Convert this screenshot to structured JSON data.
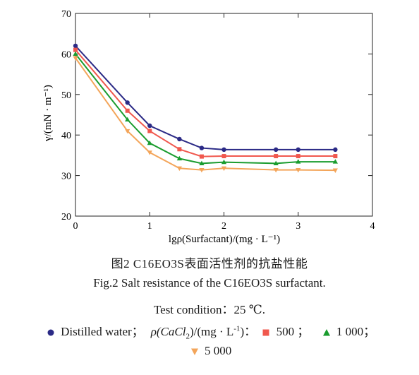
{
  "chart_data": {
    "type": "line",
    "ylabel": "γ/(mN · m⁻¹)",
    "xlabel": "lgρ(Surfactant)/(mg · L⁻¹)",
    "xlim": [
      0,
      4
    ],
    "ylim": [
      20,
      70
    ],
    "xticks": [
      "0",
      "1",
      "2",
      "3",
      "4"
    ],
    "yticks": [
      "20",
      "30",
      "40",
      "50",
      "60",
      "70"
    ],
    "grid": false,
    "series": [
      {
        "name": "Distilled water",
        "color": "#2b2a86",
        "marker": "circle",
        "x": [
          0,
          0.7,
          1.0,
          1.4,
          1.7,
          2.0,
          2.7,
          3.0,
          3.5
        ],
        "y": [
          62.0,
          48.0,
          42.3,
          39.0,
          36.8,
          36.4,
          36.4,
          36.4,
          36.4
        ]
      },
      {
        "name": "500",
        "color": "#f0584e",
        "marker": "square",
        "x": [
          0,
          0.7,
          1.0,
          1.4,
          1.7,
          2.0,
          2.7,
          3.0,
          3.5
        ],
        "y": [
          61.0,
          46.0,
          41.0,
          36.5,
          34.7,
          34.8,
          34.8,
          34.8,
          34.8
        ]
      },
      {
        "name": "1 000",
        "color": "#1a9c2e",
        "marker": "triangle",
        "x": [
          0,
          0.7,
          1.0,
          1.4,
          1.7,
          2.0,
          2.7,
          3.0,
          3.5
        ],
        "y": [
          60.0,
          43.8,
          38.0,
          34.2,
          33.0,
          33.3,
          33.0,
          33.4,
          33.4
        ]
      },
      {
        "name": "5 000",
        "color": "#f3a55a",
        "marker": "triangle-down",
        "x": [
          0,
          0.7,
          1.0,
          1.4,
          1.7,
          2.0,
          2.7,
          3.0,
          3.5
        ],
        "y": [
          59.0,
          41.0,
          35.7,
          31.8,
          31.4,
          31.8,
          31.4,
          31.4,
          31.3
        ]
      }
    ]
  },
  "caption": {
    "cn": "图2 C16EO3S表面活性剂的抗盐性能",
    "en": "Fig.2 Salt resistance of the C16EO3S surfactant.",
    "condition": "Test condition：25 ℃."
  },
  "legend": {
    "distilled": "Distilled water；",
    "rho": "ρ(CaCl",
    "rho_sub": "2",
    "rho_unit": ")/(mg · L",
    "rho_sup": "-1",
    "rho_end": ")：",
    "v500": "500 ；",
    "v1000": "1 000；",
    "v5000": "5 000"
  }
}
